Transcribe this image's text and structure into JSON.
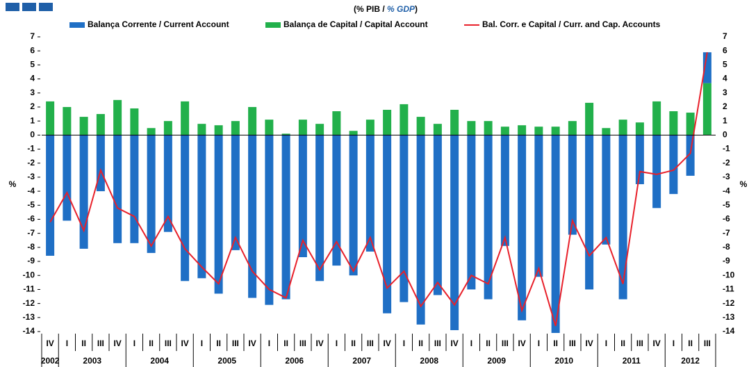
{
  "chart_data": {
    "type": "bar",
    "title": [
      "(% PIB / ",
      "% GDP",
      ")"
    ],
    "ylabel": "%",
    "y2label": "%",
    "groups": [
      {
        "year": "2002",
        "quarters": [
          "IV"
        ]
      },
      {
        "year": "2003",
        "quarters": [
          "I",
          "II",
          "III",
          "IV"
        ]
      },
      {
        "year": "2004",
        "quarters": [
          "I",
          "II",
          "III",
          "IV"
        ]
      },
      {
        "year": "2005",
        "quarters": [
          "I",
          "II",
          "III",
          "IV"
        ]
      },
      {
        "year": "2006",
        "quarters": [
          "I",
          "II",
          "III",
          "IV"
        ]
      },
      {
        "year": "2007",
        "quarters": [
          "I",
          "II",
          "III",
          "IV"
        ]
      },
      {
        "year": "2008",
        "quarters": [
          "I",
          "II",
          "III",
          "IV"
        ]
      },
      {
        "year": "2009",
        "quarters": [
          "I",
          "II",
          "III",
          "IV"
        ]
      },
      {
        "year": "2010",
        "quarters": [
          "I",
          "II",
          "III",
          "IV"
        ]
      },
      {
        "year": "2011",
        "quarters": [
          "I",
          "II",
          "III",
          "IV"
        ]
      },
      {
        "year": "2012",
        "quarters": [
          "I",
          "II",
          "III"
        ]
      }
    ],
    "series": [
      {
        "name": "Balança Corrente / Current Account",
        "type": "bar",
        "color": "#1f6fc5",
        "values": [
          -8.6,
          -6.1,
          -8.1,
          -4.0,
          -7.7,
          -7.7,
          -8.4,
          -6.9,
          -10.4,
          -10.2,
          -11.3,
          -8.2,
          -11.6,
          -12.1,
          -11.7,
          -8.7,
          -10.4,
          -9.3,
          -10.0,
          -8.3,
          -12.7,
          -11.9,
          -13.5,
          -11.4,
          -13.9,
          -11.0,
          -11.7,
          -7.9,
          -13.2,
          -10.1,
          -14.1,
          -7.1,
          -11.0,
          -7.8,
          -11.7,
          -3.5,
          -5.2,
          -4.2,
          -2.9,
          2.2
        ]
      },
      {
        "name": "Balança de Capital / Capital Account",
        "type": "bar",
        "color": "#22b04b",
        "values": [
          2.4,
          2.0,
          1.3,
          1.5,
          2.5,
          1.9,
          0.5,
          1.0,
          2.4,
          0.8,
          0.7,
          1.0,
          2.0,
          1.1,
          0.1,
          1.1,
          0.8,
          1.7,
          0.3,
          1.1,
          1.8,
          2.2,
          1.3,
          0.8,
          1.8,
          1.0,
          1.0,
          0.6,
          0.7,
          0.6,
          0.6,
          1.0,
          2.3,
          0.5,
          1.1,
          0.9,
          2.4,
          1.7,
          1.6,
          3.7
        ]
      },
      {
        "name": "Bal. Corr. e Capital / Curr. and Cap. Accounts",
        "type": "line",
        "color": "#e8202a",
        "values": [
          -6.2,
          -4.1,
          -6.8,
          -2.5,
          -5.2,
          -5.8,
          -7.9,
          -5.8,
          -8.1,
          -9.4,
          -10.6,
          -7.3,
          -9.7,
          -11.0,
          -11.6,
          -7.5,
          -9.6,
          -7.6,
          -9.7,
          -7.3,
          -10.9,
          -9.7,
          -12.2,
          -10.5,
          -12.1,
          -10.0,
          -10.6,
          -7.3,
          -12.5,
          -9.5,
          -13.6,
          -6.1,
          -8.6,
          -7.3,
          -10.6,
          -2.6,
          -2.8,
          -2.5,
          -1.3,
          5.9
        ]
      }
    ],
    "ylim": [
      -14,
      7
    ],
    "yticks": [
      -14,
      -13,
      -12,
      -11,
      -10,
      -9,
      -8,
      -7,
      -6,
      -5,
      -4,
      -3,
      -2,
      -1,
      0,
      1,
      2,
      3,
      4,
      5,
      6,
      7
    ],
    "y2lim": [
      -14,
      7
    ],
    "y2ticks": [
      -14,
      -13,
      -12,
      -11,
      -10,
      -9,
      -8,
      -7,
      -6,
      -5,
      -4,
      -3,
      -2,
      -1,
      0,
      1,
      2,
      3,
      4,
      5,
      6,
      7
    ]
  }
}
